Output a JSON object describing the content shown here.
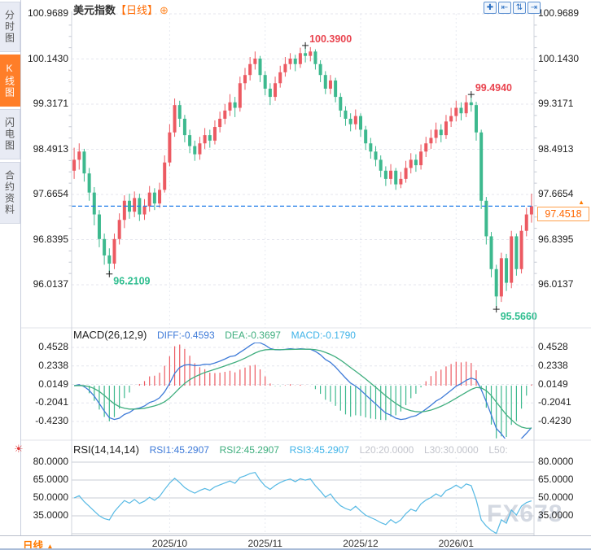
{
  "sidebar": {
    "items": [
      {
        "label": "分时图"
      },
      {
        "label": "K线图"
      },
      {
        "label": "闪电图"
      },
      {
        "label": "合约资料"
      }
    ],
    "active_index": 1
  },
  "header": {
    "symbol": "美元指数",
    "period_tag": "【日线】",
    "add_icon": "⊕"
  },
  "toolbar": {
    "buttons": [
      {
        "name": "pan",
        "glyph": "✚"
      },
      {
        "name": "zoom-horizontal",
        "glyph": "⇤"
      },
      {
        "name": "zoom-vertical",
        "glyph": "⇅"
      },
      {
        "name": "shift-right",
        "glyph": "⇥"
      }
    ]
  },
  "main_chart": {
    "current_price_label": "97.4518",
    "price_arrow": "▲"
  },
  "macd_panel": {
    "title": "MACD(26,12,9)",
    "diff": "DIFF:-0.4593",
    "dea": "DEA:-0.3697",
    "macd": "MACD:-0.1790"
  },
  "rsi_panel": {
    "title": "RSI(14,14,14)",
    "rsi1": "RSI1:45.2907",
    "rsi2": "RSI2:45.2907",
    "rsi3": "RSI3:45.2907",
    "l20": "L20:20.0000",
    "l30": "L30:30.0000",
    "l50": "L50:",
    "indicator_icon": "☀"
  },
  "bottom_bar": {
    "period_label": "日线",
    "arrow": "▲"
  },
  "watermark": "FX678",
  "colors": {
    "up": "#ec5a62",
    "down": "#3db98e",
    "accent_orange": "#ff7a00",
    "price_line": "#1f7ce8",
    "dif_line": "#3f7bd8",
    "dea_line": "#3fae7e",
    "rsi_line": "#56b9e4",
    "grid": "#e4e6ee",
    "grid_solid": "#c9ccd4",
    "annotation_up": "#e9444f",
    "annotation_down": "#2fbe8f"
  },
  "chart_data": {
    "type": "candlestick",
    "title": "美元指数 日线 (US Dollar Index, daily)",
    "y_ticks": [
      "100.9689",
      "100.1430",
      "99.3171",
      "98.4913",
      "97.6654",
      "96.8395",
      "96.0137"
    ],
    "ylim": [
      95.5,
      101.0
    ],
    "current_price": 97.4518,
    "x_ticks": [
      {
        "label": "2025/10",
        "index": 19
      },
      {
        "label": "2025/11",
        "index": 38
      },
      {
        "label": "2025/12",
        "index": 57
      },
      {
        "label": "2026/01",
        "index": 76
      }
    ],
    "annotations": [
      {
        "label": "100.3900",
        "index": 46,
        "price": 100.39,
        "position": "above"
      },
      {
        "label": "99.4940",
        "index": 79,
        "price": 99.494,
        "position": "above"
      },
      {
        "label": "96.2109",
        "index": 7,
        "price": 96.2109,
        "position": "below"
      },
      {
        "label": "95.5660",
        "index": 84,
        "price": 95.566,
        "position": "below"
      }
    ],
    "candles": [
      [
        98.1,
        98.52,
        97.95,
        98.3
      ],
      [
        98.3,
        98.6,
        98.12,
        98.45
      ],
      [
        98.45,
        98.5,
        97.9,
        98.05
      ],
      [
        98.05,
        98.15,
        97.55,
        97.7
      ],
      [
        97.7,
        97.8,
        97.1,
        97.3
      ],
      [
        97.3,
        97.38,
        96.7,
        96.85
      ],
      [
        96.85,
        96.95,
        96.38,
        96.55
      ],
      [
        96.55,
        96.68,
        96.2109,
        96.4
      ],
      [
        96.4,
        96.95,
        96.3,
        96.85
      ],
      [
        96.85,
        97.32,
        96.75,
        97.2
      ],
      [
        97.2,
        97.65,
        97.05,
        97.55
      ],
      [
        97.55,
        97.68,
        97.22,
        97.35
      ],
      [
        97.35,
        97.72,
        97.25,
        97.6
      ],
      [
        97.6,
        97.68,
        97.18,
        97.3
      ],
      [
        97.3,
        97.58,
        97.2,
        97.45
      ],
      [
        97.45,
        97.82,
        97.35,
        97.7
      ],
      [
        97.7,
        97.78,
        97.38,
        97.5
      ],
      [
        97.5,
        97.88,
        97.42,
        97.75
      ],
      [
        97.75,
        98.38,
        97.7,
        98.25
      ],
      [
        98.25,
        98.95,
        98.18,
        98.8
      ],
      [
        98.8,
        99.42,
        98.72,
        99.3
      ],
      [
        99.3,
        99.38,
        98.9,
        99.05
      ],
      [
        99.05,
        99.12,
        98.62,
        98.75
      ],
      [
        98.75,
        98.85,
        98.42,
        98.55
      ],
      [
        98.55,
        98.65,
        98.28,
        98.4
      ],
      [
        98.4,
        98.72,
        98.3,
        98.6
      ],
      [
        98.6,
        98.88,
        98.5,
        98.75
      ],
      [
        98.75,
        98.85,
        98.52,
        98.65
      ],
      [
        98.65,
        99.02,
        98.58,
        98.9
      ],
      [
        98.9,
        99.18,
        98.8,
        99.05
      ],
      [
        99.05,
        99.32,
        98.95,
        99.2
      ],
      [
        99.2,
        99.5,
        99.1,
        99.35
      ],
      [
        99.35,
        99.45,
        99.08,
        99.25
      ],
      [
        99.25,
        99.82,
        99.18,
        99.7
      ],
      [
        99.7,
        99.98,
        99.58,
        99.85
      ],
      [
        99.85,
        100.18,
        99.75,
        100.05
      ],
      [
        100.05,
        100.28,
        99.95,
        100.15
      ],
      [
        100.15,
        100.2,
        99.72,
        99.85
      ],
      [
        99.85,
        99.92,
        99.48,
        99.6
      ],
      [
        99.6,
        99.7,
        99.3,
        99.45
      ],
      [
        99.45,
        99.82,
        99.38,
        99.7
      ],
      [
        99.7,
        100.02,
        99.62,
        99.9
      ],
      [
        99.9,
        100.18,
        99.82,
        100.05
      ],
      [
        100.05,
        100.25,
        99.95,
        100.15
      ],
      [
        100.15,
        100.22,
        99.92,
        100.05
      ],
      [
        100.05,
        100.35,
        99.98,
        100.25
      ],
      [
        100.25,
        100.39,
        100.08,
        100.2
      ],
      [
        100.2,
        100.36,
        100.1,
        100.28
      ],
      [
        100.28,
        100.32,
        99.95,
        100.05
      ],
      [
        100.05,
        100.12,
        99.72,
        99.85
      ],
      [
        99.85,
        99.92,
        99.5,
        99.6
      ],
      [
        99.6,
        99.85,
        99.5,
        99.75
      ],
      [
        99.75,
        99.8,
        99.35,
        99.45
      ],
      [
        99.45,
        99.52,
        99.08,
        99.2
      ],
      [
        99.2,
        99.28,
        98.92,
        99.05
      ],
      [
        99.05,
        99.15,
        98.82,
        98.95
      ],
      [
        98.95,
        99.22,
        98.85,
        99.1
      ],
      [
        99.1,
        99.15,
        98.72,
        98.85
      ],
      [
        98.85,
        98.92,
        98.48,
        98.6
      ],
      [
        98.6,
        98.7,
        98.32,
        98.45
      ],
      [
        98.45,
        98.55,
        98.18,
        98.3
      ],
      [
        98.3,
        98.38,
        97.98,
        98.1
      ],
      [
        98.1,
        98.18,
        97.82,
        97.95
      ],
      [
        97.95,
        98.22,
        97.85,
        98.1
      ],
      [
        98.1,
        98.15,
        97.75,
        97.85
      ],
      [
        97.85,
        98.08,
        97.78,
        97.95
      ],
      [
        97.95,
        98.28,
        97.88,
        98.15
      ],
      [
        98.15,
        98.42,
        98.05,
        98.3
      ],
      [
        98.3,
        98.4,
        98.08,
        98.2
      ],
      [
        98.2,
        98.58,
        98.12,
        98.45
      ],
      [
        98.45,
        98.72,
        98.35,
        98.6
      ],
      [
        98.6,
        98.85,
        98.5,
        98.7
      ],
      [
        98.7,
        98.98,
        98.6,
        98.85
      ],
      [
        98.85,
        98.95,
        98.62,
        98.75
      ],
      [
        98.75,
        99.12,
        98.68,
        99.0
      ],
      [
        99.0,
        99.25,
        98.9,
        99.1
      ],
      [
        99.1,
        99.38,
        99.0,
        99.25
      ],
      [
        99.25,
        99.35,
        99.02,
        99.15
      ],
      [
        99.15,
        99.48,
        99.08,
        99.35
      ],
      [
        99.35,
        99.494,
        99.18,
        99.3
      ],
      [
        99.3,
        99.36,
        98.65,
        98.8
      ],
      [
        98.8,
        98.85,
        97.4,
        97.55
      ],
      [
        97.55,
        97.62,
        96.75,
        96.9
      ],
      [
        96.9,
        96.98,
        96.15,
        96.3
      ],
      [
        96.3,
        96.38,
        95.566,
        95.8
      ],
      [
        95.8,
        96.6,
        95.7,
        96.5
      ],
      [
        96.5,
        96.58,
        95.9,
        96.05
      ],
      [
        96.05,
        97.0,
        95.95,
        96.9
      ],
      [
        96.9,
        96.95,
        96.18,
        96.3
      ],
      [
        96.3,
        97.1,
        96.22,
        97.0
      ],
      [
        97.0,
        97.42,
        96.9,
        97.3
      ],
      [
        97.3,
        97.68,
        97.15,
        97.4518
      ]
    ],
    "indicators": [
      {
        "type": "macd",
        "params": [
          26,
          12,
          9
        ],
        "y_ticks": [
          "0.4528",
          "0.2338",
          "0.0149",
          "-0.2041",
          "-0.4230"
        ],
        "values": {
          "diff": -0.4593,
          "dea": -0.3697,
          "macd": -0.179
        }
      },
      {
        "type": "rsi",
        "params": [
          14,
          14,
          14
        ],
        "y_ticks": [
          "80.0000",
          "65.0000",
          "50.0000",
          "35.0000"
        ],
        "gridlines": [
          80,
          65,
          50,
          35,
          20
        ],
        "values": {
          "rsi1": 45.2907,
          "rsi2": 45.2907,
          "rsi3": 45.2907,
          "l20": 20.0,
          "l30": 30.0,
          "l50": 50.0
        }
      }
    ]
  }
}
